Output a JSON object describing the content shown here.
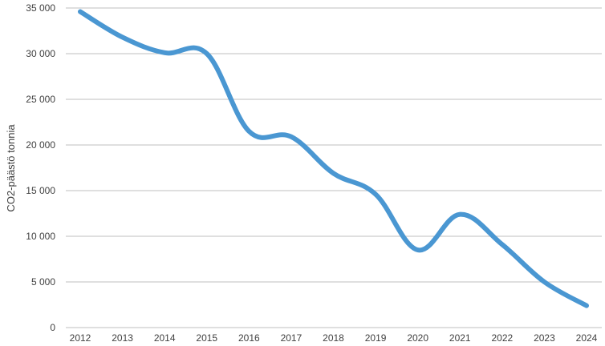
{
  "chart_data": {
    "type": "line",
    "title": "",
    "xlabel": "",
    "ylabel": "CO2-päästö tonnia",
    "ylim": [
      0,
      35000
    ],
    "yticks": [
      0,
      5000,
      10000,
      15000,
      20000,
      25000,
      30000,
      35000
    ],
    "ytick_labels": [
      "0",
      "5 000",
      "10 000",
      "15 000",
      "20 000",
      "25 000",
      "30 000",
      "35 000"
    ],
    "categories": [
      "2012",
      "2013",
      "2014",
      "2015",
      "2016",
      "2017",
      "2018",
      "2019",
      "2020",
      "2021",
      "2022",
      "2023",
      "2024"
    ],
    "series": [
      {
        "values": [
          34600,
          31800,
          30100,
          30000,
          21500,
          20900,
          16900,
          14600,
          8500,
          12400,
          9100,
          5000,
          2400
        ],
        "color": "#4a97d2"
      }
    ],
    "grid": true,
    "legend": "none",
    "smooth": true
  }
}
